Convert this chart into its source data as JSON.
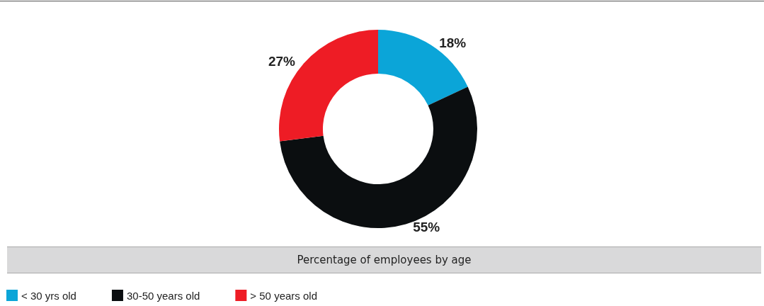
{
  "chart_data": {
    "type": "donut",
    "title": "Percentage of employees by age",
    "categories": [
      "< 30 yrs old",
      "30-50 years old",
      "> 50 years old"
    ],
    "values": [
      18,
      55,
      27
    ],
    "colors": [
      "#0ba5d8",
      "#0b0e10",
      "#ee1c25"
    ],
    "value_labels": [
      "18%",
      "55%",
      "27%"
    ],
    "legend": "bottom left"
  }
}
